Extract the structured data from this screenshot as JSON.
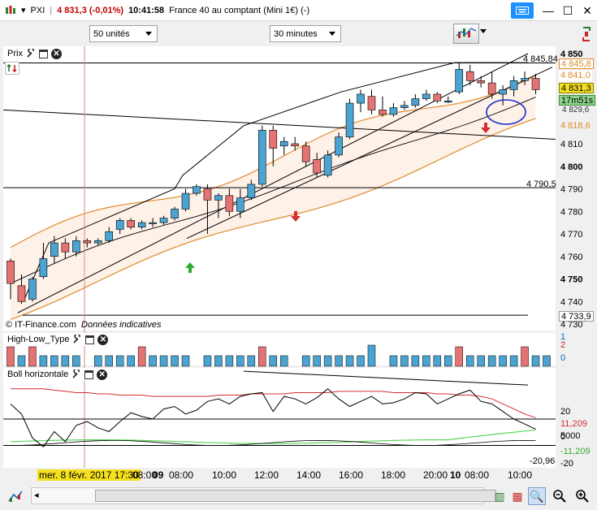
{
  "window": {
    "symbol": "PXI",
    "price_change": "4 831,3 (-0,01%)",
    "time": "10:41:58",
    "instrument": "France 40 au comptant (Mini 1€) (-)"
  },
  "toolbar": {
    "units_select": "50 unités",
    "interval_select": "30 minutes"
  },
  "price_panel": {
    "title": "Prix",
    "copyright": "© IT-Finance.com",
    "disclaimer": "Données indicatives",
    "hline_high_label": "4 845,84",
    "hline_mid_label": "4 790,5",
    "axis_labels": [
      "4 850",
      "4 810",
      "4 800",
      "4 790",
      "4 780",
      "4 770",
      "4 760",
      "4 750",
      "4 740",
      "4 730"
    ],
    "tags": {
      "upper_band": "4 845,8",
      "bb_mid": "4 841,0",
      "last_price": "4 831,3",
      "countdown": "17m51s",
      "sub_price": "4 829,6",
      "lower_band": "4 818,6",
      "low_level": "4 733,9"
    }
  },
  "hl_panel": {
    "title": "High-Low_Type",
    "axis_labels": [
      "1",
      "2",
      "0"
    ]
  },
  "boll_panel": {
    "title": "Boll horizontale",
    "axis_labels": [
      "20",
      "11,209",
      "0",
      "5000",
      "-11,209",
      "-20,96",
      "-20"
    ]
  },
  "time_axis": {
    "cursor_label": "mer. 8 févr. 2017 17:30",
    "labels": [
      "08:00",
      "09",
      "08:00",
      "10:00",
      "12:00",
      "14:00",
      "16:00",
      "18:00",
      "20:00",
      "10",
      "08:00",
      "10:00"
    ]
  },
  "colors": {
    "up_candle": "#4aa3d1",
    "down_candle": "#e57373",
    "band": "#e08a2c",
    "band_fill": "#fdf1e8",
    "last_price_tag": "#f5e020",
    "countdown_tag": "#8cd58c"
  }
}
